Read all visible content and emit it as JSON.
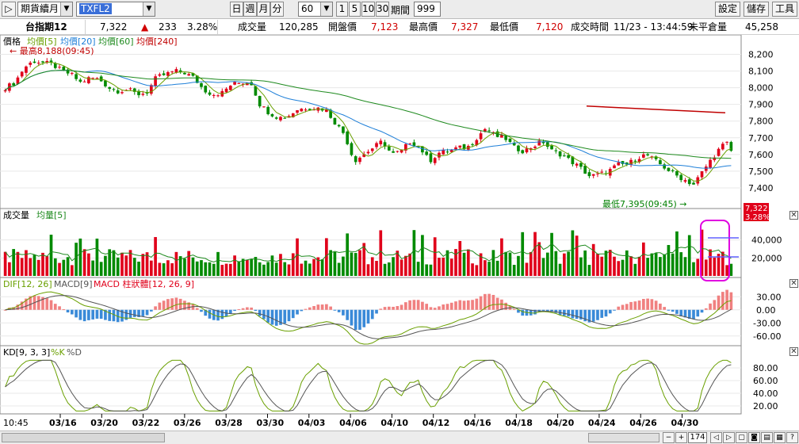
{
  "toolbar": {
    "play_icon": "play-icon",
    "market_select": "期貨續月",
    "symbol_value": "TXFL2",
    "period_buttons": [
      "日",
      "週",
      "月",
      "分"
    ],
    "interval_value": "60",
    "count_buttons": [
      "1",
      "5",
      "10",
      "30"
    ],
    "period_label": "期間",
    "period_value": "999",
    "settings_label": "設定",
    "save_label": "儲存",
    "tools_label": "工具"
  },
  "quote": {
    "name": "台指期12",
    "price": "7,322",
    "change_arrow": "▲",
    "change": "233",
    "change_pct": "3.28%",
    "volume_label": "成交量",
    "volume": "120,285",
    "open_label": "開盤價",
    "open": "7,123",
    "high_label": "最高價",
    "high": "7,327",
    "low_label": "最低價",
    "low": "7,120",
    "time_label": "成交時間",
    "time": "11/23 - 13:44:59",
    "oi_label": "未平倉量",
    "oi": "45,258"
  },
  "price_panel": {
    "legend": {
      "label": "價格",
      "ma5": "均價[5]",
      "ma20": "均價[20]",
      "ma60": "均價[60]",
      "ma240": "均價[240]"
    },
    "high_note": "最高8,188(09:45)",
    "low_note": "最低7,395(09:45)",
    "price_badge": "7,322",
    "pct_badge": "3.28%"
  },
  "volume_panel": {
    "legend": {
      "label": "成交量",
      "ma": "均量[5]"
    }
  },
  "macd_panel": {
    "legend": {
      "dif": "DIF[12, 26]",
      "macd": "MACD[9]",
      "osc": "MACD 柱狀體[12, 26, 9]"
    }
  },
  "kd_panel": {
    "legend": {
      "label": "KD[9, 3, 3]",
      "k": "%K",
      "d": "%D"
    }
  },
  "x_axis": {
    "first_label": "10:45",
    "labels": [
      "03/16",
      "03/20",
      "03/22",
      "03/26",
      "03/28",
      "03/30",
      "04/03",
      "04/06",
      "04/10",
      "04/12",
      "04/16",
      "04/18",
      "04/20",
      "04/24",
      "04/26",
      "04/30"
    ]
  },
  "bottom": {
    "count_value": "174"
  },
  "colors": {
    "up": "#e0001a",
    "down": "#008a00",
    "ma5": "#6aa000",
    "ma20": "#1e7fd8",
    "ma60": "#1e8a1e",
    "ma240": "#c00000",
    "k": "#6aa000",
    "d": "#555555"
  },
  "chart_data": [
    {
      "type": "candlestick",
      "title": "價格",
      "ylim": [
        7300,
        8250
      ],
      "yticks": [
        7400,
        7500,
        7600,
        7700,
        7800,
        7900,
        8000,
        8100,
        8200
      ],
      "series_names": [
        "均價[5]",
        "均價[20]",
        "均價[60]",
        "均價[240]"
      ],
      "close_path": [
        8000,
        8030,
        8120,
        8160,
        8150,
        8140,
        8100,
        8080,
        8030,
        8060,
        8050,
        8000,
        7980,
        7990,
        7960,
        7970,
        8060,
        8080,
        8100,
        8090,
        8060,
        7990,
        7960,
        7970,
        8020,
        8030,
        8040,
        7900,
        7850,
        7820,
        7830,
        7870,
        7880,
        7880,
        7870,
        7790,
        7720,
        7560,
        7600,
        7640,
        7680,
        7600,
        7620,
        7680,
        7640,
        7560,
        7610,
        7620,
        7640,
        7640,
        7700,
        7760,
        7710,
        7700,
        7640,
        7620,
        7650,
        7680,
        7620,
        7600,
        7560,
        7520,
        7470,
        7480,
        7500,
        7540,
        7540,
        7580,
        7600,
        7560,
        7520,
        7480,
        7450,
        7420,
        7500,
        7580,
        7650,
        7680
      ],
      "ma240": [
        [
          740,
          7890
        ],
        [
          915,
          7850
        ]
      ],
      "high_annotation": {
        "value": 8188,
        "time": "09:45"
      },
      "low_annotation": {
        "value": 7395,
        "time": "09:45"
      },
      "last": 7322
    },
    {
      "type": "bar",
      "title": "成交量",
      "ylim": [
        0,
        60000
      ],
      "yticks": [
        20000,
        40000
      ],
      "series_names": [
        "成交量",
        "均量[5]"
      ]
    },
    {
      "type": "line",
      "title": "MACD",
      "ylim": [
        -75,
        45
      ],
      "yticks": [
        30,
        0,
        -30,
        -60
      ],
      "series_names": [
        "DIF[12, 26]",
        "MACD[9]",
        "MACD 柱狀體[12, 26, 9]"
      ]
    },
    {
      "type": "line",
      "title": "KD",
      "ylim": [
        10,
        95
      ],
      "yticks": [
        80,
        60,
        40,
        20
      ],
      "series_names": [
        "%K",
        "%D"
      ]
    }
  ]
}
